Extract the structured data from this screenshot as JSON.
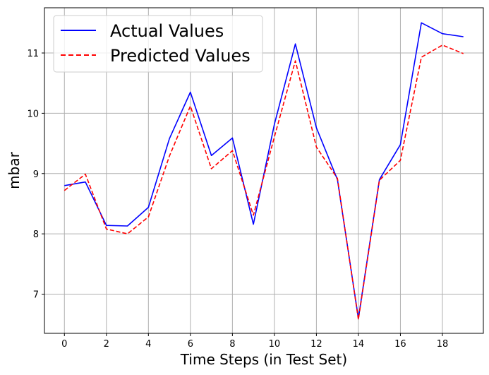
{
  "chart_data": {
    "type": "line",
    "title": "",
    "xlabel": "Time Steps (in Test Set)",
    "ylabel": "mbar",
    "x": [
      0,
      1,
      2,
      3,
      4,
      5,
      6,
      7,
      8,
      9,
      10,
      11,
      12,
      13,
      14,
      15,
      16,
      17,
      18,
      19
    ],
    "xlim": [
      -0.95,
      19.95
    ],
    "ylim": [
      6.35,
      11.75
    ],
    "xticks": [
      0,
      2,
      4,
      6,
      8,
      10,
      12,
      14,
      16,
      18
    ],
    "yticks": [
      7,
      8,
      9,
      10,
      11
    ],
    "grid": true,
    "legend_position": "top-left",
    "series": [
      {
        "name": "Actual Values",
        "color": "#0000ff",
        "style": "solid",
        "values": [
          8.8,
          8.86,
          8.14,
          8.13,
          8.44,
          9.58,
          10.35,
          9.3,
          9.59,
          8.16,
          9.82,
          11.15,
          9.76,
          8.9,
          6.6,
          8.9,
          9.48,
          11.5,
          11.32,
          11.27
        ]
      },
      {
        "name": "Predicted Values",
        "color": "#ff0000",
        "style": "dashed",
        "values": [
          8.72,
          8.99,
          8.08,
          8.0,
          8.28,
          9.29,
          10.12,
          9.08,
          9.38,
          8.31,
          9.61,
          10.87,
          9.44,
          8.92,
          6.58,
          8.89,
          9.22,
          10.93,
          11.13,
          10.99
        ]
      }
    ]
  }
}
